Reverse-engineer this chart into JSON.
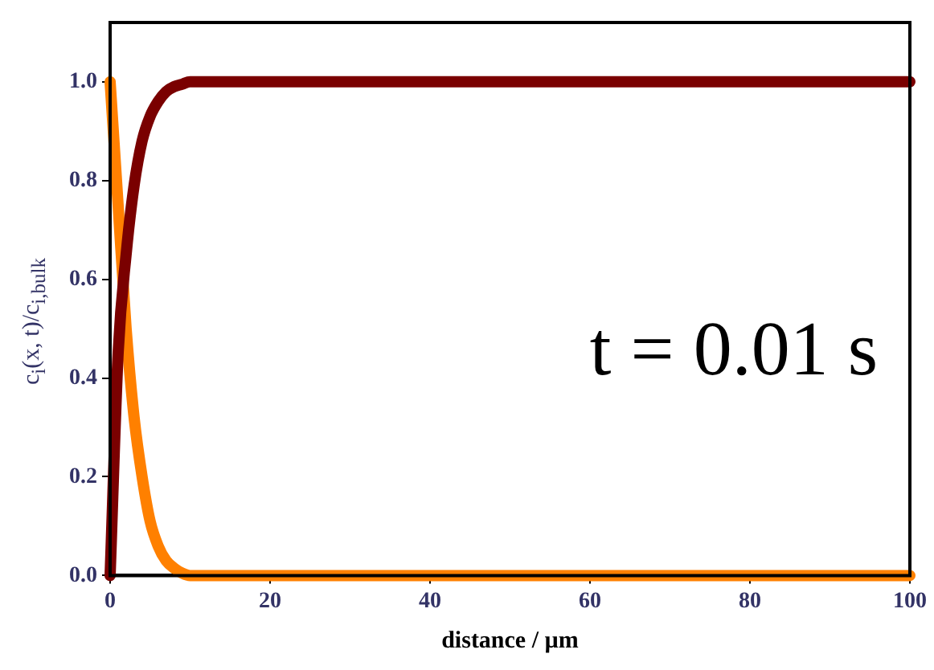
{
  "chart_data": {
    "type": "line",
    "xlabel": "distance / µm",
    "ylabel": "c$_{i}$(x, t)/c$_{i,bulk}$",
    "x": [
      0,
      1,
      2,
      3,
      4,
      5,
      6,
      7,
      8,
      9,
      10,
      12,
      15,
      20,
      40,
      60,
      80,
      100
    ],
    "series": [
      {
        "color": "#7a0000",
        "values": [
          0,
          0.45,
          0.65,
          0.79,
          0.88,
          0.93,
          0.96,
          0.98,
          0.99,
          0.995,
          1,
          1,
          1,
          1,
          1,
          1,
          1,
          1
        ]
      },
      {
        "color": "#ff8000",
        "values": [
          1,
          0.75,
          0.5,
          0.32,
          0.2,
          0.11,
          0.06,
          0.03,
          0.015,
          0.005,
          0,
          0,
          0,
          0,
          0,
          0,
          0,
          0
        ]
      }
    ],
    "xlim": [
      0,
      100
    ],
    "ylim": [
      0,
      1.12
    ],
    "xticks": [
      0,
      20,
      40,
      60,
      80,
      100
    ],
    "yticks": [
      {
        "value": 0,
        "label": "0.0"
      },
      {
        "value": 0.2,
        "label": "0.2"
      },
      {
        "value": 0.4,
        "label": "0.4"
      },
      {
        "value": 0.6,
        "label": "0.6"
      },
      {
        "value": 0.8,
        "label": "0.8"
      },
      {
        "value": 1,
        "label": "1.0"
      }
    ],
    "annotations": [
      "t = 0.01 s"
    ],
    "grid": false,
    "legend": false,
    "marker": "none",
    "line_style": "solid"
  }
}
